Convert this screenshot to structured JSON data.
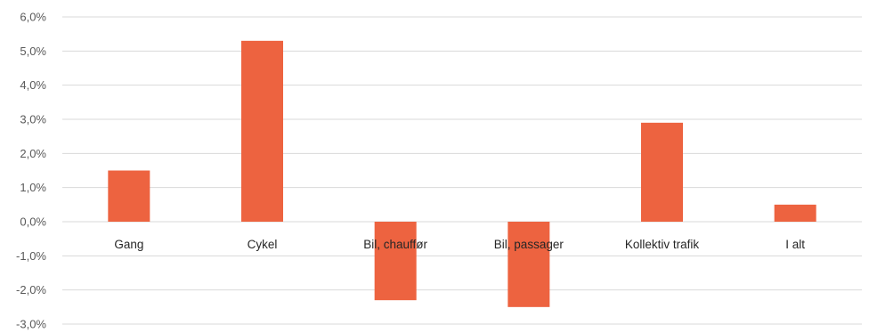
{
  "chart_data": {
    "type": "bar",
    "title": "",
    "xlabel": "",
    "ylabel": "",
    "categories": [
      "Gang",
      "Cykel",
      "Bil, chauffør",
      "Bil, passager",
      "Kollektiv trafik",
      "I alt"
    ],
    "values": [
      1.5,
      5.3,
      -2.3,
      -2.5,
      2.9,
      0.5
    ],
    "value_unit": "%",
    "ylim": [
      -3.0,
      6.0
    ],
    "y_ticks": [
      "6,0%",
      "5,0%",
      "4,0%",
      "3,0%",
      "2,0%",
      "1,0%",
      "0,0%",
      "-1,0%",
      "-2,0%",
      "-3,0%"
    ],
    "y_tick_values": [
      6,
      5,
      4,
      3,
      2,
      1,
      0,
      -1,
      -2,
      -3
    ],
    "grid": true,
    "legend": "none",
    "bar_color": "#ed6340",
    "grid_color": "#d9d9d9"
  }
}
